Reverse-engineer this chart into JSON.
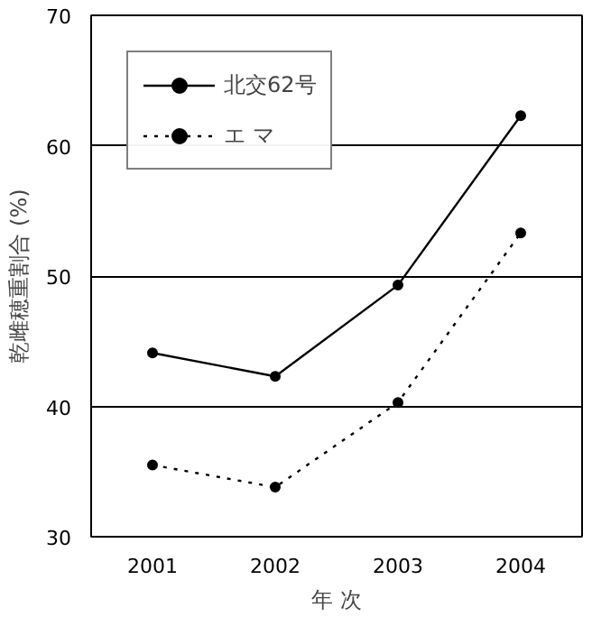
{
  "chart_data": {
    "type": "line",
    "xlabel": "年 次",
    "ylabel": "乾雌穂重割合 (%)",
    "categories": [
      "2001",
      "2002",
      "2003",
      "2004"
    ],
    "series": [
      {
        "name": "北交62号",
        "color": "#000000",
        "values": [
          44.1,
          42.3,
          49.3,
          62.3
        ],
        "line_style": "solid"
      },
      {
        "name": "エ マ",
        "color": "#000000",
        "values": [
          35.5,
          33.8,
          40.3,
          53.3
        ],
        "line_style": "dotted"
      }
    ],
    "ylim": [
      30,
      70
    ],
    "yticks": [
      30,
      40,
      50,
      60,
      70
    ],
    "grid": "y",
    "legend": "top left",
    "marker": "circle"
  }
}
